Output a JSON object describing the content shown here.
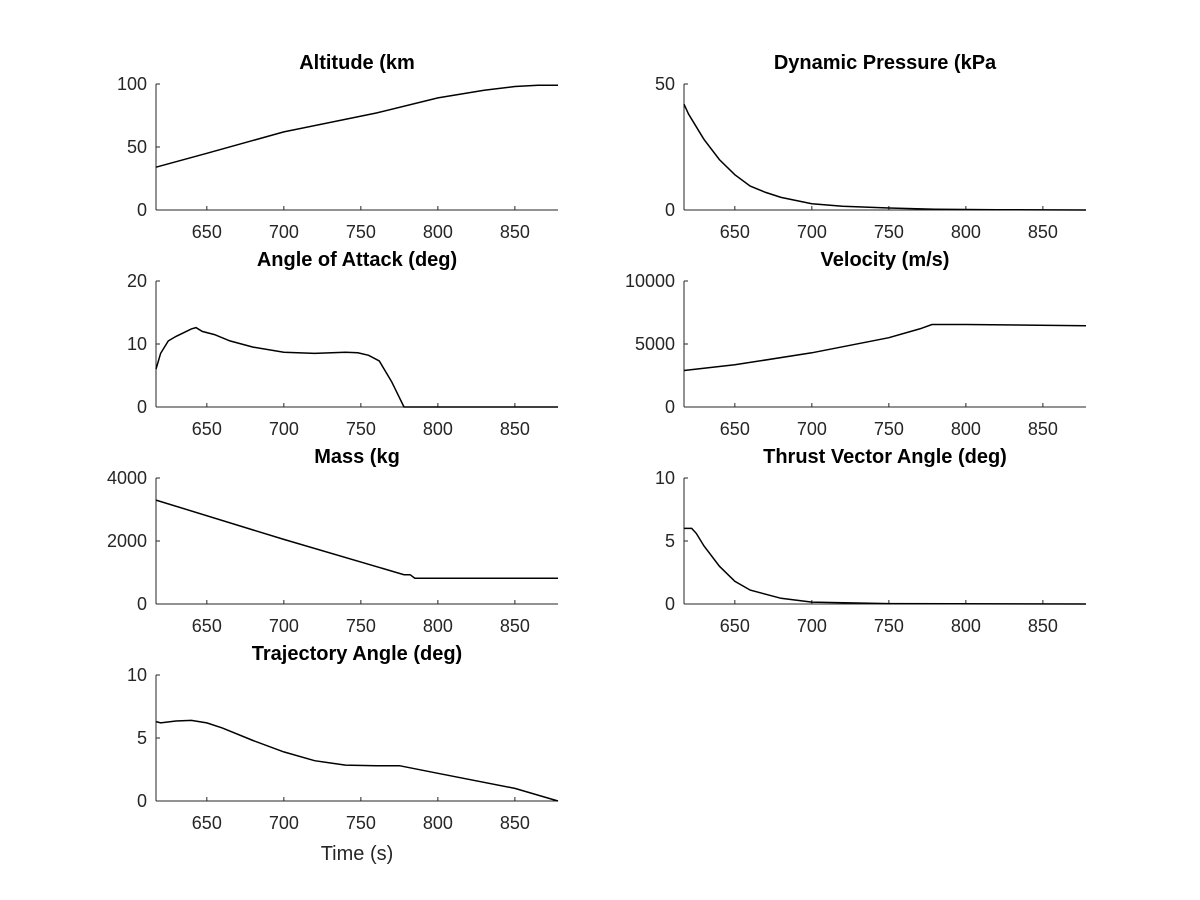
{
  "chart_data": [
    {
      "type": "line",
      "title": "Altitude (km",
      "xlabel": "",
      "ylabel": "",
      "xlim": [
        617,
        878
      ],
      "ylim": [
        0,
        100
      ],
      "xticks": [
        650,
        700,
        750,
        800,
        850
      ],
      "yticks": [
        0,
        50,
        100
      ],
      "grid": false,
      "series": [
        {
          "x": [
            617,
            650,
            700,
            760,
            800,
            830,
            850,
            865,
            878
          ],
          "y": [
            34,
            45,
            62,
            77,
            89,
            95,
            98,
            99,
            99
          ]
        }
      ]
    },
    {
      "type": "line",
      "title": "Dynamic Pressure (kPa",
      "xlabel": "",
      "ylabel": "",
      "xlim": [
        617,
        878
      ],
      "ylim": [
        0,
        50
      ],
      "xticks": [
        650,
        700,
        750,
        800,
        850
      ],
      "yticks": [
        0,
        50
      ],
      "grid": false,
      "series": [
        {
          "x": [
            617,
            620,
            625,
            630,
            640,
            650,
            660,
            670,
            680,
            700,
            720,
            750,
            780,
            820,
            878
          ],
          "y": [
            42,
            38,
            33,
            28,
            20,
            14,
            9.5,
            7,
            5,
            2.5,
            1.5,
            0.8,
            0.3,
            0.1,
            0
          ]
        }
      ]
    },
    {
      "type": "line",
      "title": "Angle of Attack (deg)",
      "xlabel": "",
      "ylabel": "",
      "xlim": [
        617,
        878
      ],
      "ylim": [
        0,
        20
      ],
      "xticks": [
        650,
        700,
        750,
        800,
        850
      ],
      "yticks": [
        0,
        10,
        20
      ],
      "grid": false,
      "series": [
        {
          "x": [
            617,
            620,
            625,
            630,
            635,
            640,
            643,
            647,
            655,
            665,
            680,
            700,
            720,
            740,
            748,
            755,
            762,
            770,
            778,
            800,
            878
          ],
          "y": [
            6,
            8.5,
            10.5,
            11.2,
            11.8,
            12.4,
            12.6,
            12,
            11.5,
            10.5,
            9.5,
            8.7,
            8.5,
            8.7,
            8.6,
            8.2,
            7.3,
            4,
            0,
            0,
            0
          ]
        }
      ]
    },
    {
      "type": "line",
      "title": "Velocity (m/s)",
      "xlabel": "",
      "ylabel": "",
      "xlim": [
        617,
        878
      ],
      "ylim": [
        0,
        10000
      ],
      "xticks": [
        650,
        700,
        750,
        800,
        850
      ],
      "yticks": [
        0,
        5000,
        10000
      ],
      "grid": false,
      "series": [
        {
          "x": [
            617,
            650,
            700,
            750,
            770,
            778,
            800,
            878
          ],
          "y": [
            2900,
            3350,
            4300,
            5500,
            6200,
            6550,
            6550,
            6450
          ]
        }
      ]
    },
    {
      "type": "line",
      "title": "Mass (kg",
      "xlabel": "",
      "ylabel": "",
      "xlim": [
        617,
        878
      ],
      "ylim": [
        0,
        4000
      ],
      "xticks": [
        650,
        700,
        750,
        800,
        850
      ],
      "yticks": [
        0,
        2000,
        4000
      ],
      "grid": false,
      "series": [
        {
          "x": [
            617,
            700,
            778,
            782,
            785,
            878
          ],
          "y": [
            3300,
            2050,
            930,
            930,
            820,
            820
          ]
        }
      ]
    },
    {
      "type": "line",
      "title": "Thrust Vector Angle (deg)",
      "xlabel": "",
      "ylabel": "",
      "xlim": [
        617,
        878
      ],
      "ylim": [
        0,
        10
      ],
      "xticks": [
        650,
        700,
        750,
        800,
        850
      ],
      "yticks": [
        0,
        5,
        10
      ],
      "grid": false,
      "series": [
        {
          "x": [
            617,
            622,
            625,
            630,
            640,
            650,
            660,
            680,
            700,
            750,
            878
          ],
          "y": [
            6,
            6,
            5.6,
            4.6,
            3,
            1.8,
            1.1,
            0.45,
            0.15,
            0.03,
            0
          ]
        }
      ]
    },
    {
      "type": "line",
      "title": "Trajectory Angle (deg)",
      "xlabel": "Time (s)",
      "ylabel": "",
      "xlim": [
        617,
        878
      ],
      "ylim": [
        0,
        10
      ],
      "xticks": [
        650,
        700,
        750,
        800,
        850
      ],
      "yticks": [
        0,
        5,
        10
      ],
      "grid": false,
      "series": [
        {
          "x": [
            617,
            620,
            630,
            640,
            650,
            660,
            680,
            700,
            720,
            740,
            760,
            775,
            800,
            850,
            878
          ],
          "y": [
            6.3,
            6.2,
            6.35,
            6.4,
            6.2,
            5.8,
            4.8,
            3.9,
            3.2,
            2.85,
            2.8,
            2.8,
            2.2,
            1,
            0
          ]
        }
      ]
    }
  ]
}
